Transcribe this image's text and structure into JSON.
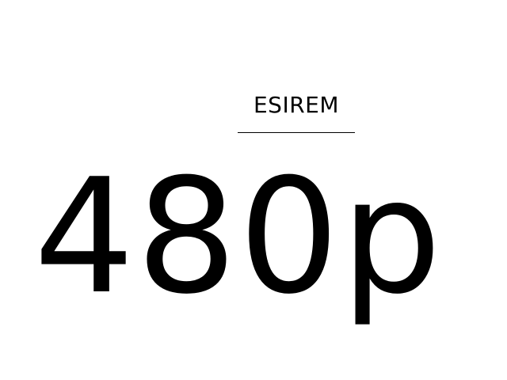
{
  "header": {
    "label": "ESIREM"
  },
  "main": {
    "resolution": "480p"
  }
}
